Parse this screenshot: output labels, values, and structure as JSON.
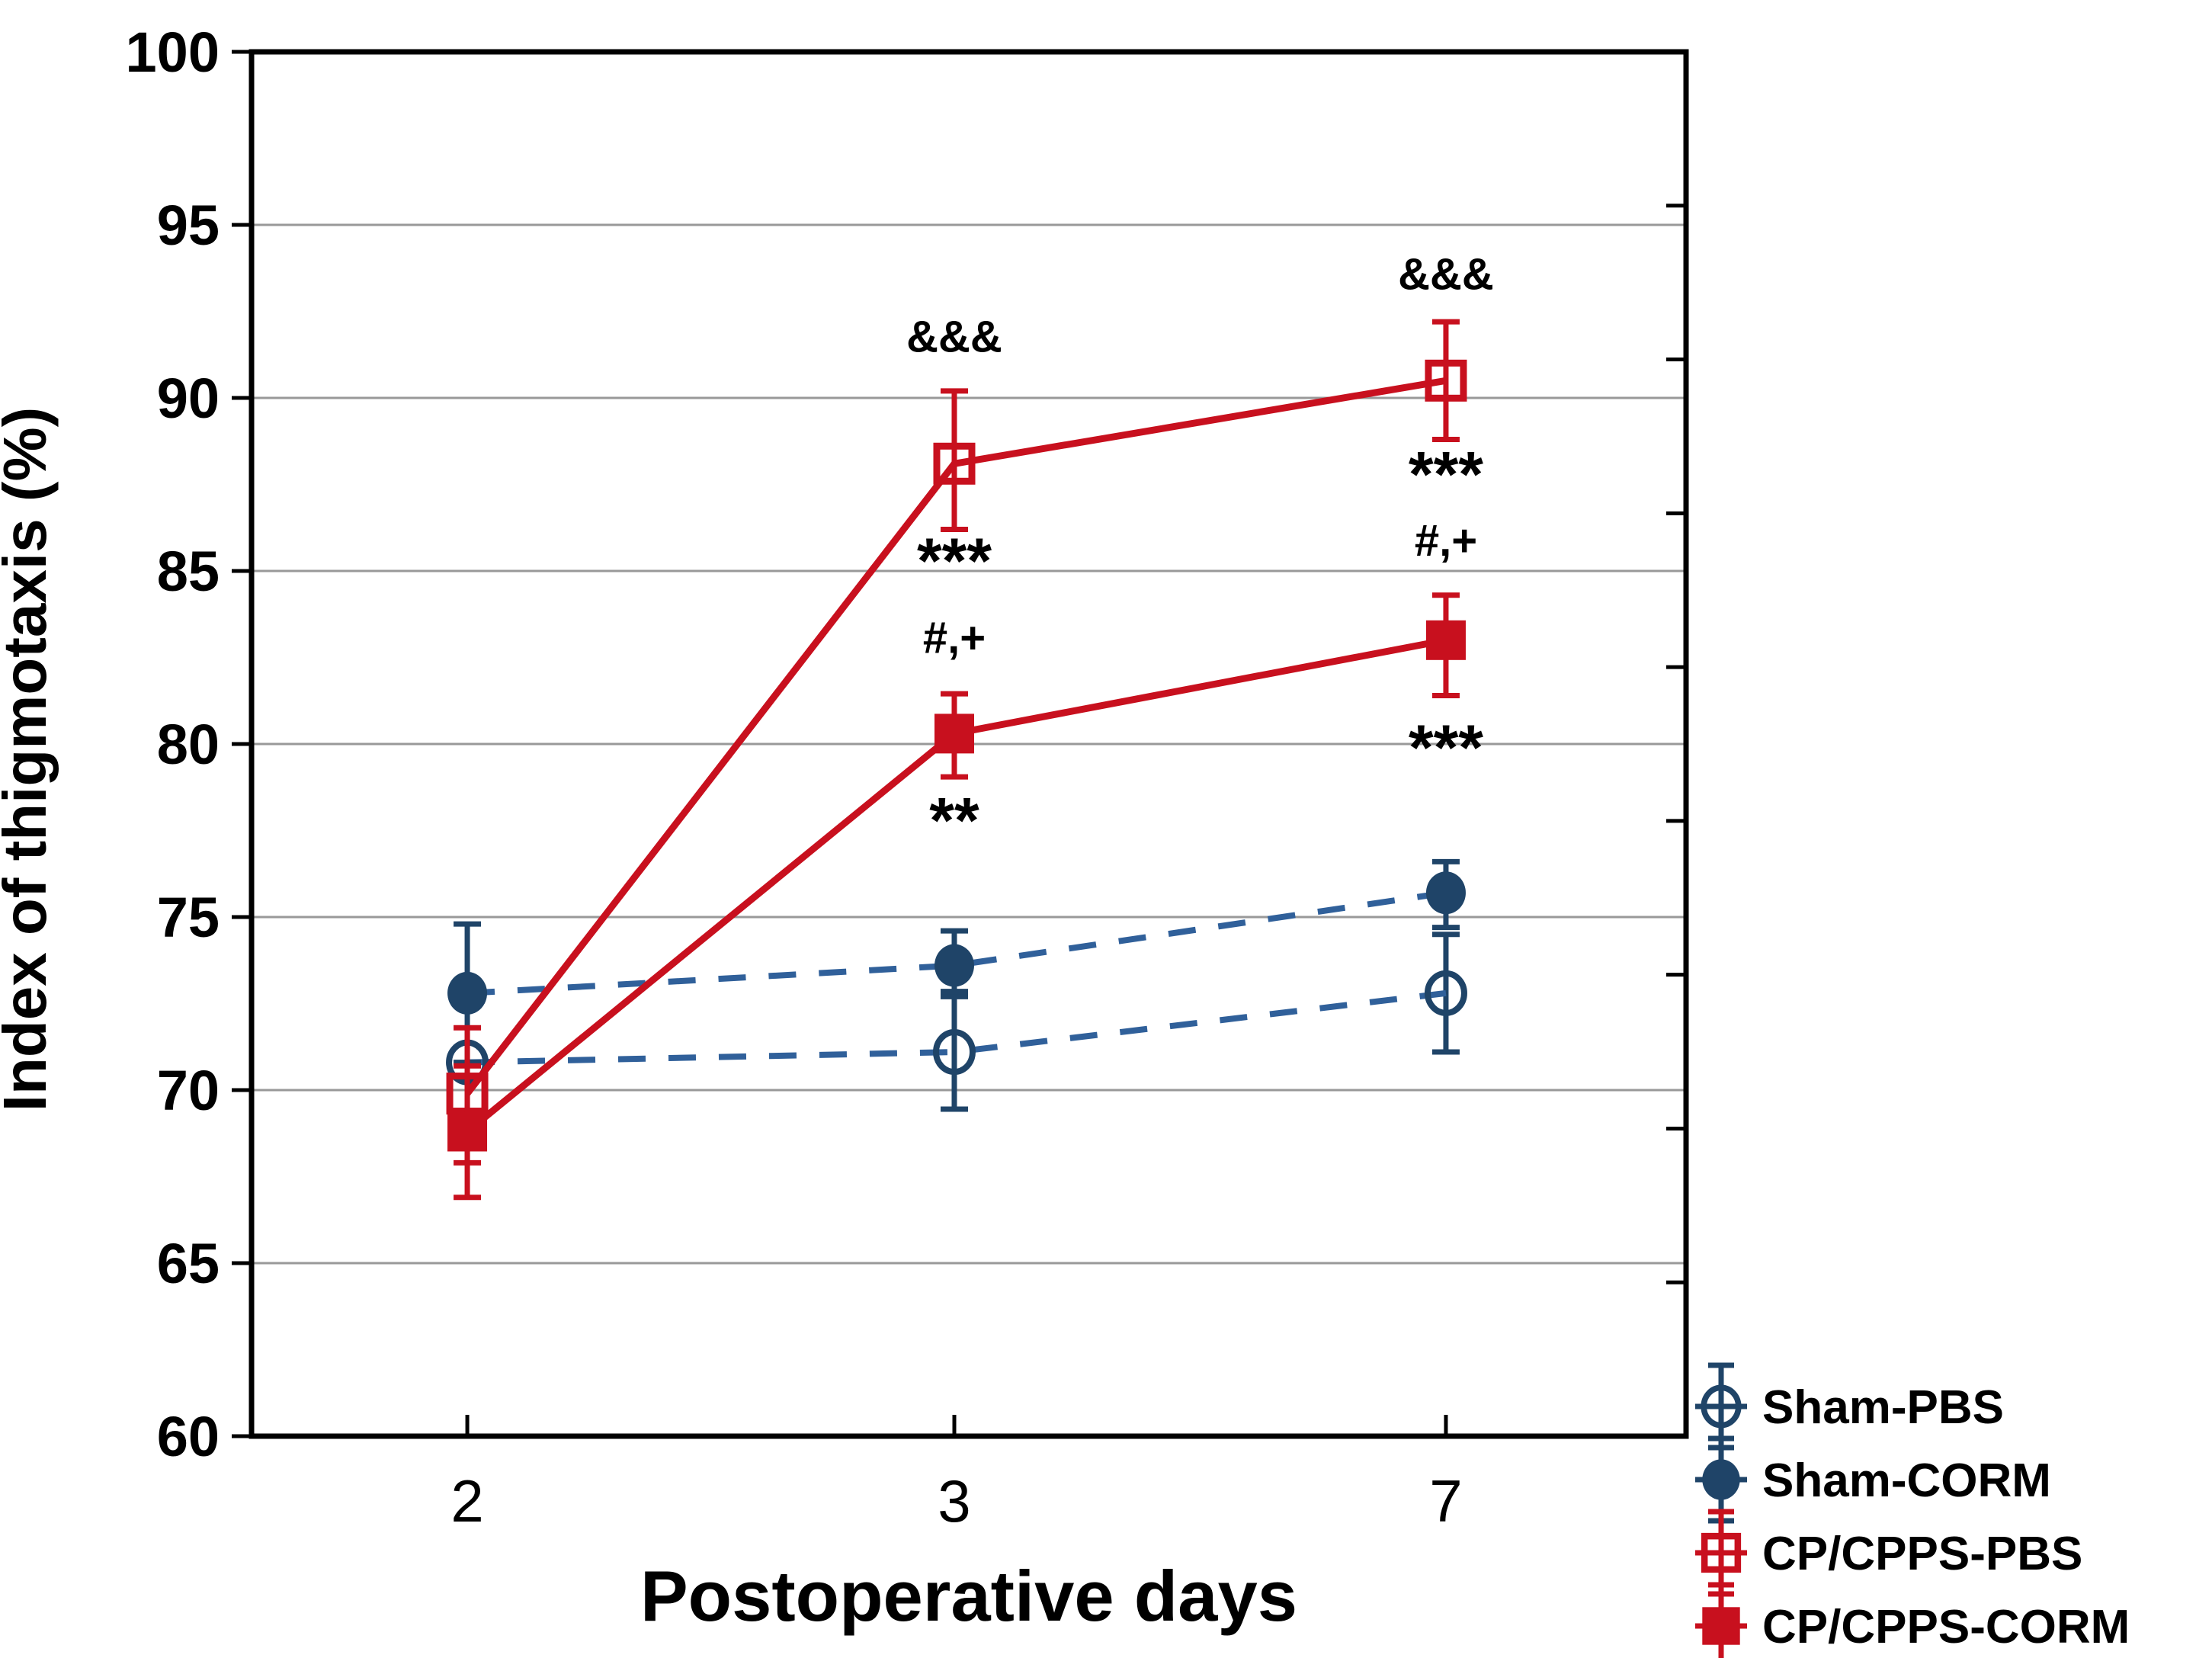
{
  "chart_data": {
    "type": "line",
    "title": "",
    "xlabel": "Postoperative days",
    "ylabel": "Index of thigmotaxis (%)",
    "x_categories": [
      "2",
      "3",
      "7"
    ],
    "ylim": [
      60,
      100
    ],
    "ytick_step": 5,
    "ytick_labels": [
      "60",
      "65",
      "70",
      "75",
      "80",
      "85",
      "90",
      "95",
      "100"
    ],
    "grid": "horizontal",
    "legend_position": "bottom-right",
    "colors": {
      "blue_marker": "#1F4468",
      "blue_line": "#30609A",
      "red": "#C8101E",
      "gridline": "#999999",
      "frame": "#000000",
      "annotation": "#000000"
    },
    "series": [
      {
        "name": "Sham-PBS",
        "marker": "circle-open",
        "line_style": "dashed",
        "color": "#1F4468",
        "line_color": "#30609A",
        "values": [
          70.8,
          71.1,
          72.8
        ],
        "err_lo": [
          null,
          1.65,
          1.7
        ],
        "err_hi": [
          null,
          1.6,
          1.7
        ]
      },
      {
        "name": "Sham-CORM",
        "marker": "circle-filled",
        "line_style": "dashed",
        "color": "#1F4468",
        "line_color": "#30609A",
        "values": [
          72.8,
          73.6,
          75.7
        ],
        "err_lo": [
          2.0,
          0.75,
          1.0
        ],
        "err_hi": [
          2.0,
          1.0,
          0.9
        ]
      },
      {
        "name": "CP/CPPS-PBS",
        "marker": "square-open",
        "line_style": "solid",
        "color": "#C8101E",
        "line_color": "#C8101E",
        "values": [
          69.9,
          88.1,
          90.5
        ],
        "err_lo": [
          2.0,
          1.9,
          1.7
        ],
        "err_hi": [
          1.9,
          2.1,
          1.7
        ]
      },
      {
        "name": "CP/CPPS-CORM",
        "marker": "square-filled",
        "line_style": "solid",
        "color": "#C8101E",
        "line_color": "#C8101E",
        "values": [
          68.8,
          80.3,
          83.0
        ],
        "err_lo": [
          1.9,
          1.25,
          1.6
        ],
        "err_hi": [
          1.9,
          1.15,
          1.3
        ]
      }
    ],
    "annotations": [
      {
        "day": "3",
        "value": 91.8,
        "text": "&&&"
      },
      {
        "day": "3",
        "value": 85.5,
        "text": "***"
      },
      {
        "day": "3",
        "value": 83.1,
        "text": "#,+"
      },
      {
        "day": "3",
        "value": 78.0,
        "text": "**"
      },
      {
        "day": "7",
        "value": 93.6,
        "text": "&&&"
      },
      {
        "day": "7",
        "value": 88.0,
        "text": "***"
      },
      {
        "day": "7",
        "value": 85.9,
        "text": "#,+"
      },
      {
        "day": "7",
        "value": 80.1,
        "text": "***"
      }
    ],
    "legend_entries": [
      "Sham-PBS",
      "Sham-CORM",
      "CP/CPPS-PBS",
      "CP/CPPS-CORM"
    ]
  }
}
